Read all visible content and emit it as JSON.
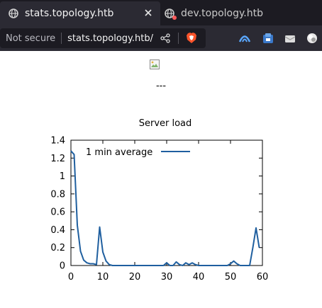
{
  "tabs": [
    {
      "title": "stats.topology.htb",
      "active": true,
      "icon": "globe-icon"
    },
    {
      "title": "dev.topology.htb",
      "active": false,
      "icon": "globe-warning-icon"
    }
  ],
  "address_bar": {
    "security_label": "Not secure",
    "url": "stats.topology.htb/"
  },
  "toolbar_icons": [
    "share-icon",
    "brave-shields-icon",
    "vpn-icon",
    "extension-icon",
    "wallet-icon",
    "profile-icon"
  ],
  "page": {
    "separator_text": "---"
  },
  "chart_data": {
    "type": "line",
    "title": "Server load",
    "xlabel": "",
    "ylabel": "",
    "xlim": [
      0,
      60
    ],
    "ylim": [
      0,
      1.4
    ],
    "x_ticks": [
      "0",
      "10",
      "20",
      "30",
      "40",
      "50",
      "60"
    ],
    "y_ticks": [
      "0",
      "0.2",
      "0.4",
      "0.6",
      "0.8",
      "1",
      "1.2",
      "1.4"
    ],
    "legend": "top-left",
    "grid": false,
    "series": [
      {
        "name": "1 min average",
        "color": "#1f5f9f",
        "x": [
          0,
          1,
          2,
          3,
          4,
          5,
          6,
          7,
          8,
          9,
          10,
          11,
          12,
          13,
          14,
          15,
          16,
          17,
          18,
          19,
          20,
          21,
          22,
          23,
          24,
          25,
          26,
          27,
          28,
          29,
          30,
          31,
          32,
          33,
          34,
          35,
          36,
          37,
          38,
          39,
          40,
          41,
          42,
          43,
          44,
          45,
          46,
          47,
          48,
          49,
          50,
          51,
          52,
          53,
          54,
          55,
          56,
          57,
          58,
          59
        ],
        "y": [
          1.28,
          1.24,
          0.45,
          0.16,
          0.06,
          0.03,
          0.02,
          0.02,
          0.01,
          0.43,
          0.15,
          0.05,
          0.01,
          0,
          0,
          0,
          0,
          0,
          0,
          0,
          0,
          0,
          0,
          0,
          0,
          0,
          0,
          0,
          0,
          0,
          0.03,
          0,
          0,
          0.04,
          0.01,
          0,
          0.03,
          0.01,
          0.03,
          0.01,
          0,
          0,
          0,
          0,
          0,
          0,
          0,
          0,
          0,
          0,
          0.02,
          0.05,
          0.02,
          0,
          0,
          0,
          0,
          0.2,
          0.42,
          0.2
        ]
      }
    ]
  }
}
